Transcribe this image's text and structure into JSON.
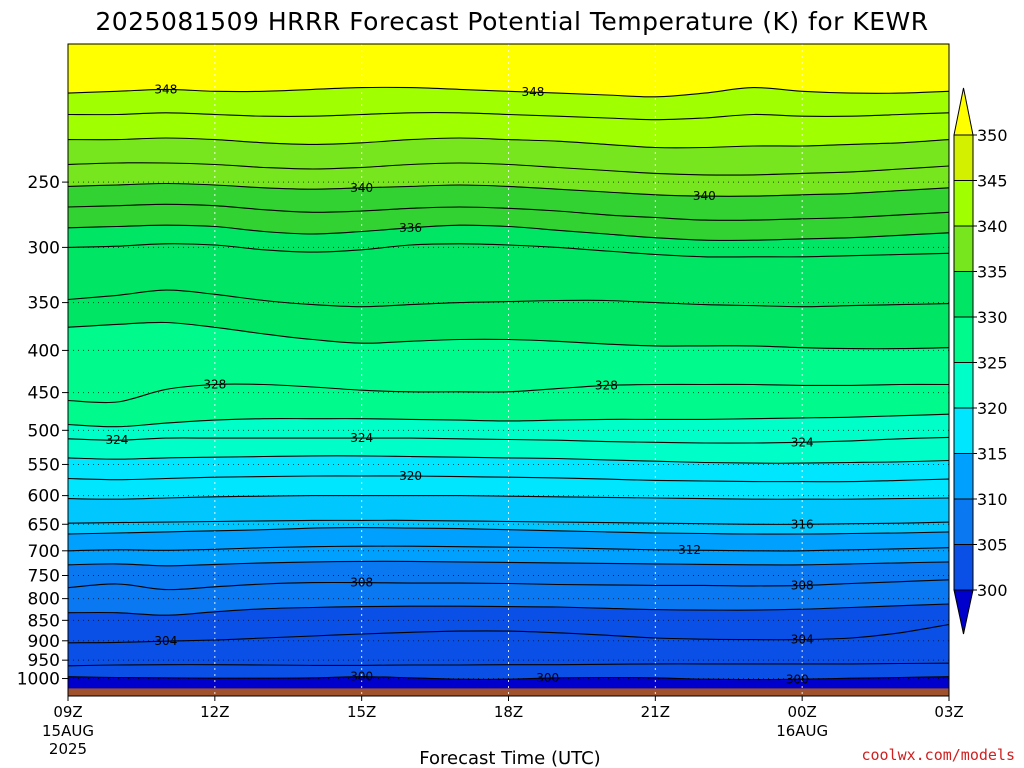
{
  "title": "2025081509 HRRR Forecast Potential Temperature (K) for KEWR",
  "credit": "coolwx.com/models",
  "colors": {
    "ground": "#a0522d",
    "fills": [
      "#0000cd",
      "#0a50e6",
      "#0a78f0",
      "#00a0ff",
      "#00c8ff",
      "#00e6ff",
      "#00ffc8",
      "#00fa8c",
      "#00e664",
      "#32d232",
      "#78e61e",
      "#a0ff00",
      "#d2f000",
      "#ffff00"
    ]
  },
  "chart_data": {
    "type": "contour",
    "title": "2025081509 HRRR Forecast Potential Temperature (K) for KEWR",
    "xlabel": "Forecast Time (UTC)",
    "ylabel": "",
    "x_range_hours": [
      0,
      18
    ],
    "y_scale": "log-pressure",
    "y_range_hPa": [
      1050,
      170
    ],
    "yticks": [
      250,
      300,
      350,
      400,
      450,
      500,
      550,
      600,
      650,
      700,
      750,
      800,
      850,
      900,
      950,
      1000
    ],
    "xticks": [
      {
        "hour": 0,
        "label": "09Z",
        "sub": [
          "15AUG",
          "2025"
        ]
      },
      {
        "hour": 3,
        "label": "12Z",
        "sub": []
      },
      {
        "hour": 6,
        "label": "15Z",
        "sub": []
      },
      {
        "hour": 9,
        "label": "18Z",
        "sub": []
      },
      {
        "hour": 12,
        "label": "21Z",
        "sub": []
      },
      {
        "hour": 15,
        "label": "00Z",
        "sub": [
          "16AUG"
        ]
      },
      {
        "hour": 18,
        "label": "03Z",
        "sub": []
      }
    ],
    "grid": true,
    "colorbar": {
      "levels": [
        300,
        305,
        310,
        315,
        320,
        325,
        330,
        335,
        340,
        345,
        350
      ],
      "labels": [
        "300",
        "305",
        "310",
        "315",
        "320",
        "325",
        "330",
        "335",
        "340",
        "345",
        "350"
      ],
      "extend": "both",
      "placement": "right"
    },
    "hours": [
      0,
      1,
      2,
      3,
      4,
      5,
      6,
      7,
      8,
      9,
      10,
      11,
      12,
      13,
      14,
      15,
      16,
      17,
      18
    ],
    "contours": [
      {
        "value": 300,
        "label": "300",
        "p": [
          995,
          997,
          998,
          999,
          999,
          998,
          995,
          998,
          1002,
          1002,
          998,
          997,
          998,
          1002,
          1003,
          1002,
          999,
          997,
          995
        ]
      },
      {
        "value": 302,
        "label": "",
        "p": [
          965,
          963,
          962,
          962,
          963,
          964,
          964,
          963,
          963,
          962,
          962,
          961,
          960,
          960,
          960,
          960,
          960,
          959,
          958
        ]
      },
      {
        "value": 304,
        "label": "304",
        "p": [
          905,
          904,
          901,
          898,
          893,
          888,
          883,
          879,
          876,
          876,
          880,
          886,
          893,
          896,
          897,
          897,
          893,
          880,
          860
        ]
      },
      {
        "value": 306,
        "label": "",
        "p": [
          832,
          832,
          838,
          830,
          823,
          820,
          818,
          817,
          817,
          818,
          819,
          822,
          825,
          826,
          826,
          824,
          820,
          816,
          812
        ]
      },
      {
        "value": 308,
        "label": "308",
        "p": [
          776,
          768,
          780,
          774,
          768,
          765,
          765,
          766,
          766,
          767,
          769,
          770,
          771,
          771,
          772,
          771,
          767,
          763,
          759
        ]
      },
      {
        "value": 310,
        "label": "",
        "p": [
          728,
          726,
          730,
          727,
          724,
          722,
          721,
          721,
          722,
          723,
          724,
          725,
          726,
          727,
          728,
          728,
          726,
          724,
          722
        ]
      },
      {
        "value": 312,
        "label": "312",
        "p": [
          700,
          698,
          699,
          697,
          694,
          692,
          691,
          691,
          692,
          693,
          694,
          696,
          698,
          699,
          700,
          700,
          698,
          696,
          694
        ]
      },
      {
        "value": 314,
        "label": "",
        "p": [
          668,
          666,
          664,
          662,
          660,
          657,
          656,
          657,
          658,
          660,
          662,
          664,
          666,
          667,
          668,
          668,
          667,
          666,
          664
        ]
      },
      {
        "value": 316,
        "label": "316",
        "p": [
          648,
          647,
          646,
          645,
          644,
          643,
          643,
          643,
          644,
          645,
          646,
          647,
          648,
          649,
          650,
          650,
          649,
          648,
          646
        ]
      },
      {
        "value": 318,
        "label": "",
        "p": [
          605,
          606,
          604,
          602,
          601,
          600,
          600,
          600,
          600,
          601,
          602,
          603,
          604,
          605,
          606,
          606,
          606,
          605,
          604
        ]
      },
      {
        "value": 320,
        "label": "320",
        "p": [
          572,
          574,
          572,
          570,
          569,
          568,
          568,
          568,
          569,
          570,
          571,
          573,
          575,
          576,
          577,
          577,
          577,
          575,
          573
        ]
      },
      {
        "value": 322,
        "label": "",
        "p": [
          540,
          542,
          540,
          539,
          538,
          537,
          537,
          538,
          539,
          540,
          541,
          543,
          545,
          547,
          548,
          548,
          547,
          546,
          544
        ]
      },
      {
        "value": 324,
        "label": "324",
        "p": [
          512,
          514,
          511,
          511,
          511,
          511,
          511,
          511,
          512,
          513,
          514,
          516,
          517,
          518,
          518,
          517,
          515,
          512,
          510
        ]
      },
      {
        "value": 326,
        "label": "",
        "p": [
          492,
          495,
          490,
          486,
          484,
          484,
          484,
          485,
          486,
          487,
          486,
          485,
          485,
          485,
          484,
          483,
          482,
          480,
          478
        ]
      },
      {
        "value": 328,
        "label": "328",
        "p": [
          460,
          462,
          446,
          440,
          440,
          443,
          447,
          449,
          449,
          449,
          445,
          441,
          440,
          440,
          440,
          441,
          441,
          440,
          440
        ]
      },
      {
        "value": 330,
        "label": "",
        "p": [
          375,
          372,
          370,
          375,
          382,
          388,
          392,
          390,
          388,
          388,
          390,
          393,
          395,
          395,
          395,
          397,
          398,
          398,
          397
        ]
      },
      {
        "value": 332,
        "label": "",
        "p": [
          347,
          343,
          338,
          342,
          348,
          352,
          354,
          352,
          350,
          349,
          348,
          348,
          350,
          352,
          353,
          354,
          353,
          352,
          351
        ]
      },
      {
        "value": 334,
        "label": "",
        "p": [
          300,
          299,
          297,
          298,
          302,
          304,
          302,
          298,
          297,
          298,
          300,
          303,
          306,
          308,
          308,
          308,
          307,
          306,
          305
        ]
      },
      {
        "value": 336,
        "label": "336",
        "p": [
          284,
          283,
          282,
          283,
          287,
          289,
          287,
          284,
          282,
          283,
          286,
          289,
          292,
          294,
          294,
          293,
          292,
          290,
          288
        ]
      },
      {
        "value": 338,
        "label": "",
        "p": [
          268,
          267,
          266,
          267,
          270,
          272,
          271,
          269,
          268,
          269,
          271,
          274,
          276,
          278,
          278,
          277,
          276,
          274,
          272
        ]
      },
      {
        "value": 340,
        "label": "340",
        "p": [
          253,
          252,
          251,
          252,
          254,
          255,
          254,
          253,
          252,
          253,
          255,
          257,
          259,
          260,
          260,
          259,
          258,
          256,
          254
        ]
      },
      {
        "value": 342,
        "label": "",
        "p": [
          238,
          237,
          237,
          238,
          240,
          241,
          240,
          238,
          237,
          238,
          240,
          242,
          244,
          245,
          245,
          244,
          243,
          241,
          239
        ]
      },
      {
        "value": 344,
        "label": "",
        "p": [
          222,
          222,
          221,
          222,
          224,
          225,
          224,
          222,
          221,
          222,
          223,
          225,
          227,
          227,
          226,
          226,
          225,
          224,
          222
        ]
      },
      {
        "value": 346,
        "label": "",
        "p": [
          207,
          207,
          206,
          207,
          208,
          208,
          207,
          206,
          206,
          207,
          208,
          209,
          210,
          209,
          207,
          208,
          208,
          207,
          206
        ]
      },
      {
        "value": 348,
        "label": "348",
        "p": [
          195,
          194,
          193,
          194,
          194,
          193,
          192,
          192,
          193,
          194,
          195,
          196,
          197,
          195,
          192,
          194,
          195,
          195,
          194
        ]
      }
    ]
  }
}
